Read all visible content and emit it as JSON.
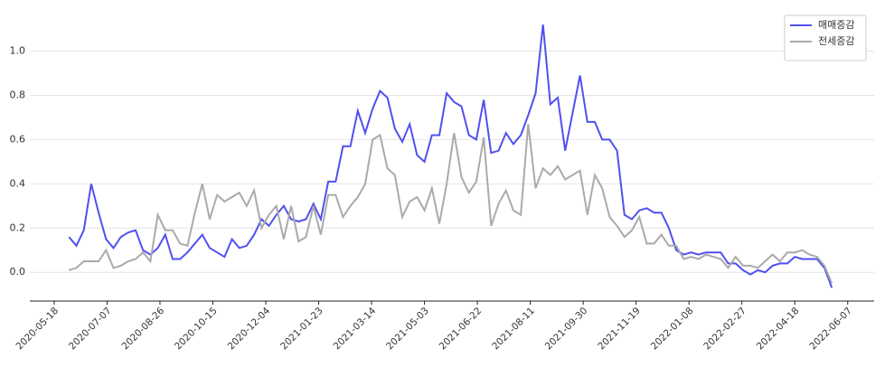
{
  "chart_data": {
    "type": "line",
    "x": [
      "2020-06-01",
      "2020-06-08",
      "2020-06-15",
      "2020-06-22",
      "2020-06-29",
      "2020-07-06",
      "2020-07-13",
      "2020-07-20",
      "2020-07-27",
      "2020-08-03",
      "2020-08-10",
      "2020-08-17",
      "2020-08-24",
      "2020-08-31",
      "2020-09-07",
      "2020-09-14",
      "2020-09-21",
      "2020-09-28",
      "2020-10-05",
      "2020-10-12",
      "2020-10-19",
      "2020-10-26",
      "2020-11-02",
      "2020-11-09",
      "2020-11-16",
      "2020-11-23",
      "2020-11-30",
      "2020-12-07",
      "2020-12-14",
      "2020-12-21",
      "2020-12-28",
      "2021-01-04",
      "2021-01-11",
      "2021-01-18",
      "2021-01-25",
      "2021-02-01",
      "2021-02-08",
      "2021-02-15",
      "2021-02-22",
      "2021-03-01",
      "2021-03-08",
      "2021-03-15",
      "2021-03-22",
      "2021-03-29",
      "2021-04-05",
      "2021-04-12",
      "2021-04-19",
      "2021-04-26",
      "2021-05-03",
      "2021-05-10",
      "2021-05-17",
      "2021-05-24",
      "2021-05-31",
      "2021-06-07",
      "2021-06-14",
      "2021-06-21",
      "2021-06-28",
      "2021-07-05",
      "2021-07-12",
      "2021-07-19",
      "2021-07-26",
      "2021-08-02",
      "2021-08-09",
      "2021-08-16",
      "2021-08-23",
      "2021-08-30",
      "2021-09-06",
      "2021-09-13",
      "2021-09-20",
      "2021-09-27",
      "2021-10-04",
      "2021-10-11",
      "2021-10-18",
      "2021-10-25",
      "2021-11-01",
      "2021-11-08",
      "2021-11-15",
      "2021-11-22",
      "2021-11-29",
      "2021-12-06",
      "2021-12-13",
      "2021-12-20",
      "2021-12-27",
      "2022-01-03",
      "2022-01-10",
      "2022-01-17",
      "2022-01-24",
      "2022-01-31",
      "2022-02-07",
      "2022-02-14",
      "2022-02-21",
      "2022-02-28",
      "2022-03-07",
      "2022-03-14",
      "2022-03-21",
      "2022-03-28",
      "2022-04-04",
      "2022-04-11",
      "2022-04-18",
      "2022-04-25",
      "2022-05-02",
      "2022-05-09",
      "2022-05-16",
      "2022-05-23"
    ],
    "series": [
      {
        "name": "매매증감",
        "color": "#5050f0",
        "values": [
          0.16,
          0.12,
          0.19,
          0.4,
          0.27,
          0.15,
          0.11,
          0.16,
          0.18,
          0.19,
          0.1,
          0.08,
          0.11,
          0.17,
          0.06,
          0.06,
          0.09,
          0.13,
          0.17,
          0.11,
          0.09,
          0.07,
          0.15,
          0.11,
          0.12,
          0.17,
          0.24,
          0.21,
          0.26,
          0.3,
          0.24,
          0.23,
          0.24,
          0.31,
          0.24,
          0.41,
          0.41,
          0.57,
          0.57,
          0.73,
          0.63,
          0.74,
          0.82,
          0.79,
          0.65,
          0.59,
          0.67,
          0.53,
          0.5,
          0.62,
          0.62,
          0.81,
          0.77,
          0.75,
          0.62,
          0.6,
          0.78,
          0.54,
          0.55,
          0.63,
          0.58,
          0.62,
          0.71,
          0.81,
          1.12,
          0.76,
          0.79,
          0.55,
          0.72,
          0.89,
          0.68,
          0.68,
          0.6,
          0.6,
          0.55,
          0.26,
          0.24,
          0.28,
          0.29,
          0.27,
          0.27,
          0.2,
          0.1,
          0.08,
          0.09,
          0.08,
          0.09,
          0.09,
          0.09,
          0.04,
          0.04,
          0.01,
          -0.01,
          0.01,
          0.0,
          0.03,
          0.04,
          0.04,
          0.07,
          0.06,
          0.06,
          0.06,
          0.02,
          -0.07
        ]
      },
      {
        "name": "전세증감",
        "color": "#aaaaaa",
        "values": [
          0.01,
          0.02,
          0.05,
          0.05,
          0.05,
          0.1,
          0.02,
          0.03,
          0.05,
          0.06,
          0.09,
          0.05,
          0.26,
          0.19,
          0.19,
          0.13,
          0.12,
          0.27,
          0.4,
          0.24,
          0.35,
          0.32,
          0.34,
          0.36,
          0.3,
          0.37,
          0.2,
          0.26,
          0.3,
          0.15,
          0.3,
          0.14,
          0.16,
          0.3,
          0.17,
          0.35,
          0.35,
          0.25,
          0.3,
          0.34,
          0.4,
          0.6,
          0.62,
          0.47,
          0.44,
          0.25,
          0.32,
          0.34,
          0.28,
          0.38,
          0.22,
          0.4,
          0.63,
          0.43,
          0.36,
          0.41,
          0.61,
          0.21,
          0.31,
          0.37,
          0.28,
          0.26,
          0.67,
          0.38,
          0.47,
          0.44,
          0.48,
          0.42,
          0.44,
          0.46,
          0.26,
          0.44,
          0.38,
          0.25,
          0.21,
          0.16,
          0.19,
          0.25,
          0.13,
          0.13,
          0.17,
          0.12,
          0.12,
          0.06,
          0.07,
          0.06,
          0.08,
          0.07,
          0.06,
          0.02,
          0.07,
          0.03,
          0.03,
          0.02,
          0.05,
          0.08,
          0.05,
          0.09,
          0.09,
          0.1,
          0.08,
          0.07,
          0.03,
          -0.05
        ]
      }
    ],
    "xlim": [
      "2020-04-25",
      "2022-07-02"
    ],
    "xticks": [
      "2020-05-18",
      "2020-07-07",
      "2020-08-26",
      "2020-10-15",
      "2020-12-04",
      "2021-01-23",
      "2021-03-14",
      "2021-05-03",
      "2021-06-22",
      "2021-08-11",
      "2021-09-30",
      "2021-11-19",
      "2022-01-08",
      "2022-02-27",
      "2022-04-18",
      "2022-06-07"
    ],
    "ylim": [
      -0.13,
      1.17
    ],
    "yticks": [
      {
        "value": 0,
        "label": "0.0"
      },
      0.2,
      0.4,
      0.6,
      0.8,
      {
        "value": 1,
        "label": "1.0"
      }
    ],
    "grid": true,
    "legend": "upper right"
  }
}
